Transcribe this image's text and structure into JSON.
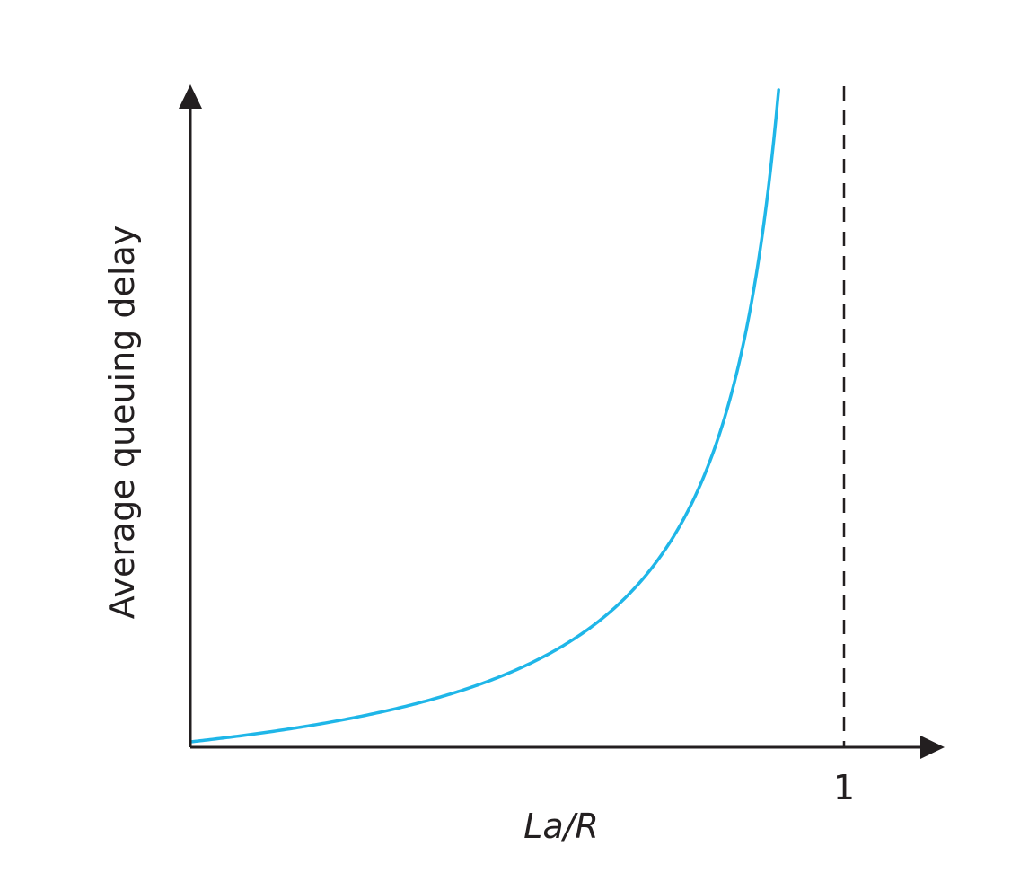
{
  "chart_data": {
    "type": "line",
    "title": "",
    "xlabel": "La/R",
    "ylabel": "Average queuing delay",
    "xlim": [
      0,
      1.1
    ],
    "x_ticks": [
      {
        "value": 1,
        "label": "1"
      }
    ],
    "y_ticks": [],
    "grid": false,
    "legend": "none",
    "asymptote": {
      "orientation": "vertical",
      "x": 1,
      "style": "dashed"
    },
    "series": [
      {
        "color": "#1fb6e8",
        "relation": "y = x / (1 - x)",
        "x": [
          0.0,
          0.05,
          0.1,
          0.15,
          0.2,
          0.25,
          0.3,
          0.35,
          0.4,
          0.45,
          0.5,
          0.55,
          0.6,
          0.65,
          0.7,
          0.75,
          0.8,
          0.85,
          0.88,
          0.9
        ],
        "y": [
          0.0,
          0.053,
          0.111,
          0.176,
          0.25,
          0.333,
          0.429,
          0.538,
          0.667,
          0.818,
          1.0,
          1.222,
          1.5,
          1.857,
          2.333,
          3.0,
          4.0,
          5.667,
          7.333,
          9.0
        ]
      }
    ]
  }
}
